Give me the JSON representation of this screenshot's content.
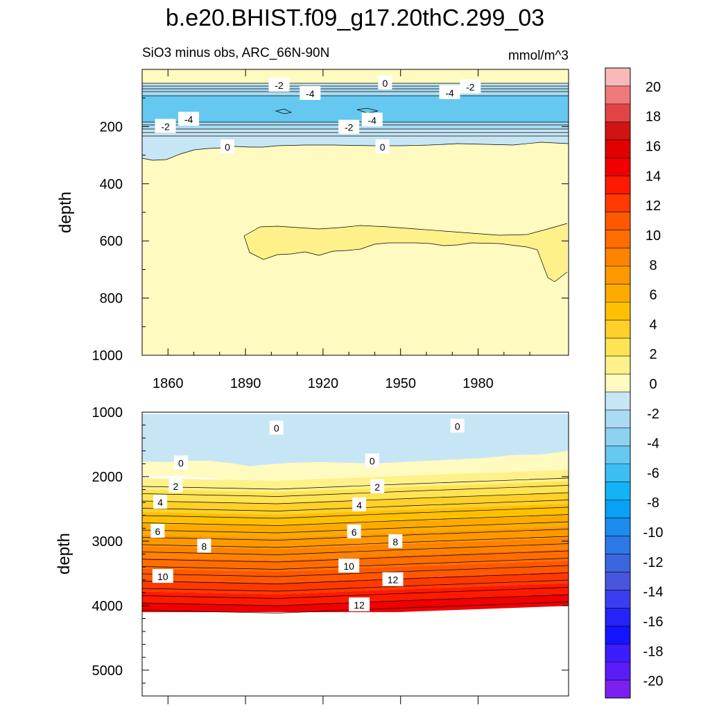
{
  "title": "b.e20.BHIST.f09_g17.20thC.299_03",
  "subtitle_left": "SiO3 minus obs, ARC_66N-90N",
  "subtitle_right": "mmol/m^3",
  "chart_data": [
    {
      "type": "contour",
      "panel": "upper",
      "ylabel": "depth",
      "xlim": [
        1850,
        2015
      ],
      "ylim": [
        1000,
        0
      ],
      "x_ticks": [
        1860,
        1890,
        1920,
        1950,
        1980
      ],
      "y_ticks": [
        200,
        400,
        600,
        800,
        1000
      ],
      "contour_labels": [
        {
          "text": "-2",
          "x": 1903,
          "y": 56
        },
        {
          "text": "0",
          "x": 1944,
          "y": 48
        },
        {
          "text": "-4",
          "x": 1915,
          "y": 85
        },
        {
          "text": "-4",
          "x": 1969,
          "y": 82
        },
        {
          "text": "-2",
          "x": 1977,
          "y": 62
        },
        {
          "text": "-4",
          "x": 1868,
          "y": 175
        },
        {
          "text": "-2",
          "x": 1859,
          "y": 200
        },
        {
          "text": "-4",
          "x": 1939,
          "y": 178
        },
        {
          "text": "-2",
          "x": 1930,
          "y": 203
        },
        {
          "text": "0",
          "x": 1883,
          "y": 272
        },
        {
          "text": "0",
          "x": 1943,
          "y": 272
        }
      ],
      "regions": [
        {
          "value_range": [
            -2,
            0
          ],
          "depth_range": [
            30,
            300
          ]
        },
        {
          "value_range": [
            -6,
            -2
          ],
          "depth_range": [
            80,
            200
          ]
        },
        {
          "value_range": [
            0,
            1
          ],
          "depth_range": [
            300,
            1000
          ]
        }
      ]
    },
    {
      "type": "contour",
      "panel": "lower",
      "ylabel": "depth",
      "xlim": [
        1850,
        2015
      ],
      "ylim": [
        5400,
        1000
      ],
      "y_ticks": [
        1000,
        2000,
        3000,
        4000,
        5000
      ],
      "bottom_of_data": 4100,
      "contour_labels": [
        {
          "text": "0",
          "x": 1902,
          "y": 1250
        },
        {
          "text": "0",
          "x": 1972,
          "y": 1220
        },
        {
          "text": "0",
          "x": 1865,
          "y": 1790
        },
        {
          "text": "0",
          "x": 1939,
          "y": 1760
        },
        {
          "text": "2",
          "x": 1863,
          "y": 2150
        },
        {
          "text": "2",
          "x": 1941,
          "y": 2160
        },
        {
          "text": "4",
          "x": 1857,
          "y": 2400
        },
        {
          "text": "4",
          "x": 1934,
          "y": 2440
        },
        {
          "text": "6",
          "x": 1856,
          "y": 2850
        },
        {
          "text": "6",
          "x": 1932,
          "y": 2860
        },
        {
          "text": "8",
          "x": 1874,
          "y": 3080
        },
        {
          "text": "8",
          "x": 1948,
          "y": 3010
        },
        {
          "text": "10",
          "x": 1858,
          "y": 3550
        },
        {
          "text": "10",
          "x": 1930,
          "y": 3390
        },
        {
          "text": "12",
          "x": 1947,
          "y": 3600
        },
        {
          "text": "12",
          "x": 1934,
          "y": 3990
        }
      ]
    }
  ],
  "colorbar": {
    "tick_labels": [
      "20",
      "18",
      "16",
      "14",
      "12",
      "10",
      "8",
      "6",
      "4",
      "2",
      "0",
      "-2",
      "-4",
      "-6",
      "-8",
      "-10",
      "-12",
      "-14",
      "-16",
      "-18",
      "-20"
    ],
    "colors": [
      "#f9b9b9",
      "#f07a7a",
      "#e24444",
      "#d11313",
      "#e20000",
      "#f00000",
      "#fe1a00",
      "#fe3a00",
      "#fe5800",
      "#fe6d00",
      "#fe8300",
      "#fe9800",
      "#feaa00",
      "#fec000",
      "#fed02a",
      "#fee455",
      "#fef18a",
      "#fffac0",
      "#c7e6f5",
      "#a9dcf2",
      "#8ed2f2",
      "#65c8f0",
      "#3bbef4",
      "#14b3f5",
      "#0aa0f6",
      "#1c8cf0",
      "#2d78e6",
      "#3a66df",
      "#4756dd",
      "#3a3ef0",
      "#2424f8",
      "#1414ff",
      "#3b1dff",
      "#5c1cf8",
      "#7a20f0"
    ]
  }
}
